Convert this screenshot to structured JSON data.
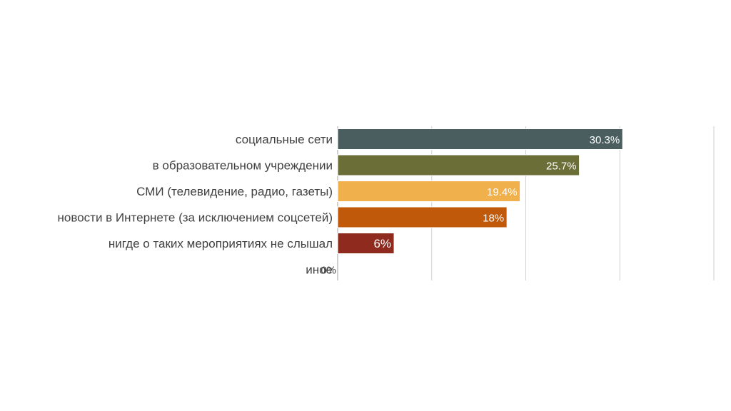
{
  "chart_data": {
    "type": "bar",
    "orientation": "horizontal",
    "title": "",
    "xlabel": "",
    "ylabel": "",
    "categories": [
      "социальные сети",
      "в образовательном учреждении",
      "СМИ (телевидение, радио, газеты)",
      "новости в Интернете (за исключением соцсетей)",
      "нигде о таких мероприятиях не слышал",
      "иное"
    ],
    "values": [
      30.3,
      25.7,
      19.4,
      18,
      6,
      0
    ],
    "value_labels": [
      "30.3%",
      "25.7%",
      "19.4%",
      "18%",
      "6%",
      "0%"
    ],
    "colors": [
      "#4a5e60",
      "#6b6e37",
      "#f0b04c",
      "#c0590a",
      "#8f2a1f",
      "#4a5e60"
    ],
    "xlim": [
      0,
      40
    ],
    "grid": true,
    "legend": "none"
  }
}
